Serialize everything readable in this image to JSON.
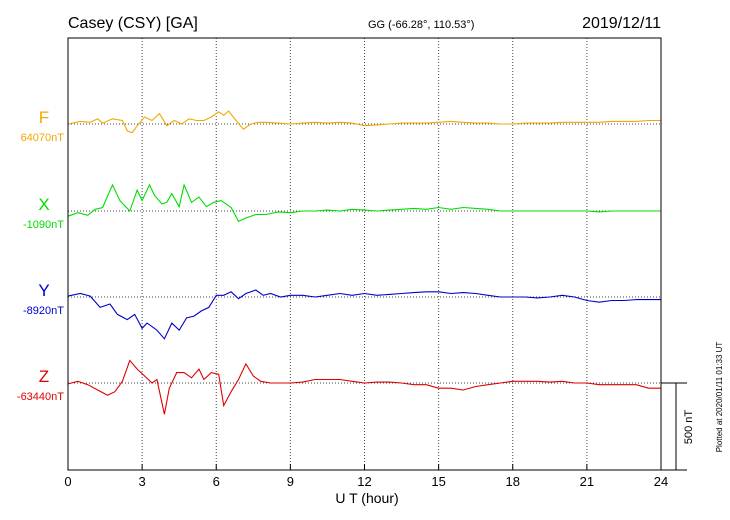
{
  "header": {
    "station": "Casey (CSY)  [GA]",
    "coords": "GG (-66.28°, 110.53°)",
    "date": "2019/12/11"
  },
  "plotted_note": "Plotted at 2020/01/11 01:33 UT",
  "scale_bar_label": "500 nT",
  "chart_data": {
    "type": "line",
    "xlabel": "U T (hour)",
    "xlim": [
      0,
      24
    ],
    "xticks": [
      "0",
      "3",
      "6",
      "9",
      "12",
      "15",
      "18",
      "21",
      "24"
    ],
    "scale_bar_nT": 500,
    "grid": true,
    "series": [
      {
        "name": "F",
        "baseline": "64070nT",
        "color": "#f0a800",
        "points": [
          [
            0,
            0
          ],
          [
            0.5,
            -15
          ],
          [
            0.9,
            -10
          ],
          [
            1.2,
            -30
          ],
          [
            1.4,
            -5
          ],
          [
            1.8,
            -30
          ],
          [
            2.2,
            -20
          ],
          [
            2.4,
            40
          ],
          [
            2.6,
            50
          ],
          [
            2.8,
            10
          ],
          [
            3.1,
            -40
          ],
          [
            3.4,
            -20
          ],
          [
            3.7,
            -60
          ],
          [
            4.0,
            10
          ],
          [
            4.3,
            -20
          ],
          [
            4.6,
            0
          ],
          [
            4.9,
            -30
          ],
          [
            5.2,
            -20
          ],
          [
            5.5,
            -20
          ],
          [
            5.8,
            -40
          ],
          [
            6.1,
            -70
          ],
          [
            6.3,
            -50
          ],
          [
            6.5,
            -75
          ],
          [
            6.8,
            -20
          ],
          [
            7.1,
            30
          ],
          [
            7.4,
            0
          ],
          [
            7.7,
            -10
          ],
          [
            8.0,
            -10
          ],
          [
            8.5,
            -5
          ],
          [
            9.0,
            0
          ],
          [
            9.5,
            -5
          ],
          [
            10.0,
            -10
          ],
          [
            10.5,
            -5
          ],
          [
            11.0,
            -10
          ],
          [
            11.5,
            -5
          ],
          [
            12.0,
            10
          ],
          [
            12.5,
            5
          ],
          [
            13.0,
            0
          ],
          [
            13.5,
            -5
          ],
          [
            14.0,
            -5
          ],
          [
            14.5,
            -5
          ],
          [
            15.0,
            -10
          ],
          [
            15.5,
            -15
          ],
          [
            16.0,
            -10
          ],
          [
            16.5,
            -5
          ],
          [
            17.0,
            -5
          ],
          [
            17.5,
            0
          ],
          [
            18.0,
            0
          ],
          [
            18.5,
            -5
          ],
          [
            19.0,
            -5
          ],
          [
            19.5,
            -5
          ],
          [
            20.0,
            -10
          ],
          [
            20.5,
            -10
          ],
          [
            21.0,
            -10
          ],
          [
            21.5,
            -10
          ],
          [
            22.0,
            -15
          ],
          [
            22.5,
            -15
          ],
          [
            23.0,
            -15
          ],
          [
            23.5,
            -20
          ],
          [
            24.0,
            -20
          ]
        ]
      },
      {
        "name": "X",
        "baseline": "-1090nT",
        "color": "#00dd00",
        "points": [
          [
            0,
            30
          ],
          [
            0.4,
            10
          ],
          [
            0.8,
            25
          ],
          [
            1.1,
            -10
          ],
          [
            1.4,
            -20
          ],
          [
            1.8,
            -150
          ],
          [
            2.1,
            -60
          ],
          [
            2.5,
            0
          ],
          [
            2.8,
            -120
          ],
          [
            3.0,
            -60
          ],
          [
            3.3,
            -150
          ],
          [
            3.5,
            -90
          ],
          [
            3.8,
            -40
          ],
          [
            4.0,
            -50
          ],
          [
            4.2,
            -100
          ],
          [
            4.5,
            -25
          ],
          [
            4.7,
            -150
          ],
          [
            5.0,
            -50
          ],
          [
            5.3,
            -80
          ],
          [
            5.6,
            -25
          ],
          [
            5.9,
            -50
          ],
          [
            6.2,
            -60
          ],
          [
            6.6,
            -20
          ],
          [
            6.9,
            60
          ],
          [
            7.2,
            40
          ],
          [
            7.6,
            20
          ],
          [
            8.0,
            20
          ],
          [
            8.5,
            5
          ],
          [
            9.0,
            10
          ],
          [
            9.5,
            0
          ],
          [
            10.0,
            0
          ],
          [
            10.5,
            -5
          ],
          [
            11.0,
            0
          ],
          [
            11.5,
            -10
          ],
          [
            12.0,
            -5
          ],
          [
            12.5,
            0
          ],
          [
            13.0,
            -5
          ],
          [
            13.5,
            -10
          ],
          [
            14.0,
            -15
          ],
          [
            14.5,
            -10
          ],
          [
            15.0,
            -20
          ],
          [
            15.5,
            -10
          ],
          [
            16.0,
            -20
          ],
          [
            16.5,
            -15
          ],
          [
            17.0,
            -10
          ],
          [
            17.5,
            0
          ],
          [
            18.0,
            0
          ],
          [
            18.5,
            0
          ],
          [
            19.0,
            0
          ],
          [
            19.5,
            0
          ],
          [
            20.0,
            0
          ],
          [
            20.5,
            0
          ],
          [
            21.0,
            0
          ],
          [
            21.5,
            5
          ],
          [
            22.0,
            0
          ],
          [
            22.5,
            0
          ],
          [
            23.0,
            0
          ],
          [
            23.5,
            0
          ],
          [
            24.0,
            0
          ]
        ]
      },
      {
        "name": "Y",
        "baseline": "-8920nT",
        "color": "#0000cc",
        "points": [
          [
            0,
            -5
          ],
          [
            0.5,
            -20
          ],
          [
            0.9,
            -5
          ],
          [
            1.3,
            60
          ],
          [
            1.7,
            40
          ],
          [
            2.0,
            100
          ],
          [
            2.4,
            130
          ],
          [
            2.7,
            100
          ],
          [
            3.0,
            180
          ],
          [
            3.2,
            150
          ],
          [
            3.6,
            190
          ],
          [
            3.9,
            240
          ],
          [
            4.2,
            150
          ],
          [
            4.5,
            190
          ],
          [
            4.8,
            120
          ],
          [
            5.1,
            110
          ],
          [
            5.4,
            80
          ],
          [
            5.7,
            60
          ],
          [
            6.0,
            -10
          ],
          [
            6.3,
            -10
          ],
          [
            6.6,
            -30
          ],
          [
            6.9,
            10
          ],
          [
            7.2,
            -20
          ],
          [
            7.6,
            -40
          ],
          [
            7.9,
            -10
          ],
          [
            8.2,
            -20
          ],
          [
            8.6,
            0
          ],
          [
            9.0,
            -10
          ],
          [
            9.5,
            -10
          ],
          [
            10.0,
            0
          ],
          [
            10.5,
            -10
          ],
          [
            11.0,
            -20
          ],
          [
            11.5,
            -10
          ],
          [
            12.0,
            -20
          ],
          [
            12.5,
            -10
          ],
          [
            13.0,
            -15
          ],
          [
            13.5,
            -20
          ],
          [
            14.0,
            -25
          ],
          [
            14.5,
            -30
          ],
          [
            15.0,
            -30
          ],
          [
            15.5,
            -20
          ],
          [
            16.0,
            -25
          ],
          [
            16.5,
            -20
          ],
          [
            17.0,
            -10
          ],
          [
            17.5,
            0
          ],
          [
            18.0,
            0
          ],
          [
            18.5,
            0
          ],
          [
            19.0,
            5
          ],
          [
            19.5,
            0
          ],
          [
            20.0,
            -10
          ],
          [
            20.5,
            0
          ],
          [
            21.0,
            20
          ],
          [
            21.5,
            30
          ],
          [
            22.0,
            20
          ],
          [
            22.5,
            20
          ],
          [
            23.0,
            15
          ],
          [
            23.5,
            15
          ],
          [
            24.0,
            15
          ]
        ]
      },
      {
        "name": "Z",
        "baseline": "-63440nT",
        "color": "#dd0000",
        "points": [
          [
            0,
            5
          ],
          [
            0.4,
            -10
          ],
          [
            0.8,
            10
          ],
          [
            1.2,
            40
          ],
          [
            1.6,
            70
          ],
          [
            1.9,
            50
          ],
          [
            2.2,
            -10
          ],
          [
            2.5,
            -130
          ],
          [
            2.8,
            -80
          ],
          [
            3.1,
            -40
          ],
          [
            3.4,
            0
          ],
          [
            3.6,
            -20
          ],
          [
            3.9,
            180
          ],
          [
            4.1,
            30
          ],
          [
            4.4,
            -60
          ],
          [
            4.7,
            -60
          ],
          [
            5.0,
            -30
          ],
          [
            5.3,
            -80
          ],
          [
            5.5,
            -20
          ],
          [
            5.8,
            -60
          ],
          [
            6.1,
            -50
          ],
          [
            6.3,
            130
          ],
          [
            6.6,
            50
          ],
          [
            6.9,
            -20
          ],
          [
            7.2,
            -110
          ],
          [
            7.5,
            -40
          ],
          [
            7.8,
            -10
          ],
          [
            8.2,
            0
          ],
          [
            8.5,
            0
          ],
          [
            9.0,
            0
          ],
          [
            9.5,
            -5
          ],
          [
            10.0,
            -20
          ],
          [
            10.5,
            -20
          ],
          [
            11.0,
            -20
          ],
          [
            11.5,
            -10
          ],
          [
            12.0,
            0
          ],
          [
            12.5,
            -5
          ],
          [
            13.0,
            -5
          ],
          [
            13.5,
            0
          ],
          [
            14.0,
            10
          ],
          [
            14.5,
            10
          ],
          [
            15.0,
            30
          ],
          [
            15.5,
            30
          ],
          [
            16.0,
            40
          ],
          [
            16.5,
            20
          ],
          [
            17.0,
            10
          ],
          [
            17.5,
            0
          ],
          [
            18.0,
            -10
          ],
          [
            18.5,
            -10
          ],
          [
            19.0,
            -10
          ],
          [
            19.5,
            -5
          ],
          [
            20.0,
            -10
          ],
          [
            20.5,
            0
          ],
          [
            21.0,
            0
          ],
          [
            21.5,
            10
          ],
          [
            22.0,
            10
          ],
          [
            22.5,
            10
          ],
          [
            23.0,
            10
          ],
          [
            23.5,
            30
          ],
          [
            24.0,
            30
          ]
        ]
      }
    ]
  }
}
